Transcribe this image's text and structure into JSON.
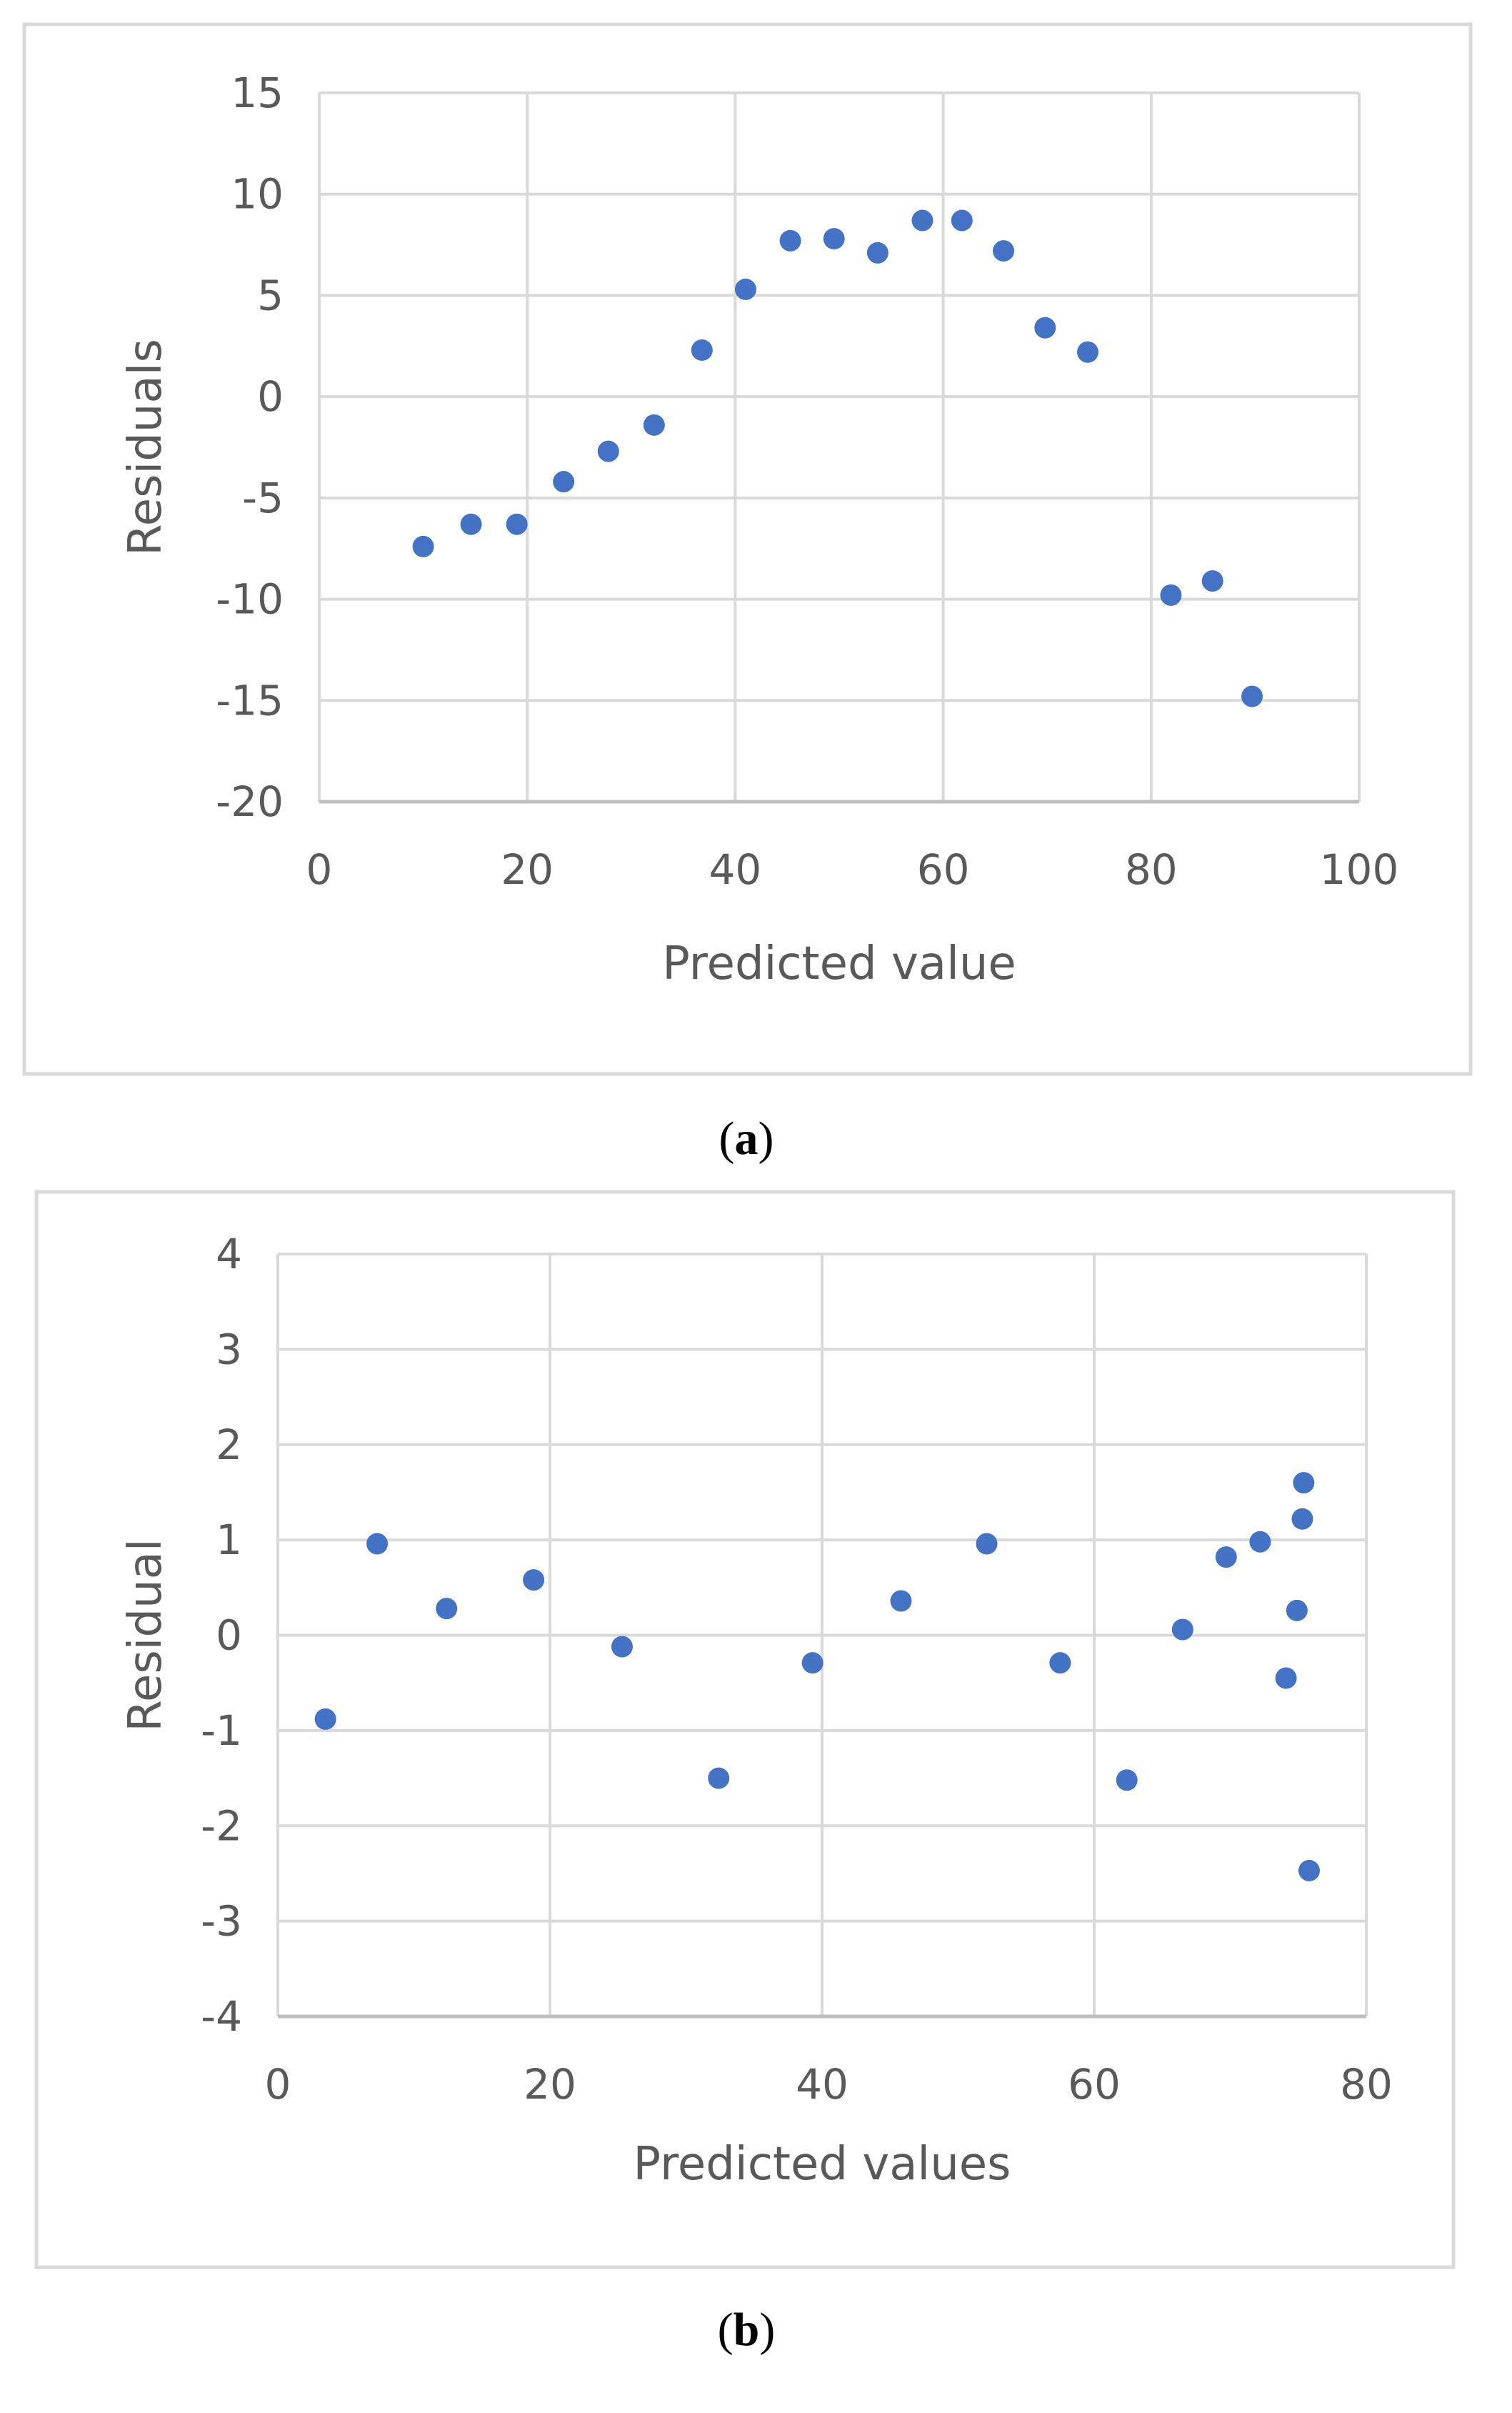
{
  "colors": {
    "marker": "#4472C4",
    "grid": "#D9D9D9",
    "text": "#595959",
    "frame": "#D9D9D9"
  },
  "chart_data": [
    {
      "type": "scatter",
      "caption_letter": "a",
      "xlabel": "Predicted value",
      "ylabel": "Residuals",
      "xlim": [
        0,
        100
      ],
      "ylim": [
        -20,
        15
      ],
      "xticks": [
        0,
        20,
        40,
        60,
        80,
        100
      ],
      "yticks": [
        -20,
        -15,
        -10,
        -5,
        0,
        5,
        10,
        15
      ],
      "grid": true,
      "x": [
        10,
        14.6,
        19,
        23.5,
        27.8,
        32.2,
        36.8,
        41,
        45.3,
        49.5,
        53.7,
        58,
        61.8,
        65.8,
        69.8,
        73.9,
        81.9,
        85.9,
        89.7
      ],
      "y": [
        -7.4,
        -6.3,
        -6.3,
        -4.2,
        -2.7,
        -1.4,
        2.3,
        5.3,
        7.7,
        7.8,
        7.1,
        8.7,
        8.7,
        7.2,
        3.4,
        2.2,
        -9.8,
        -9.1,
        -14.8
      ]
    },
    {
      "type": "scatter",
      "caption_letter": "b",
      "xlabel": "Predicted values",
      "ylabel": "Residual",
      "xlim": [
        0,
        80
      ],
      "ylim": [
        -4,
        4
      ],
      "xticks": [
        0,
        20,
        40,
        60,
        80
      ],
      "yticks": [
        -4,
        -3,
        -2,
        -1,
        0,
        1,
        2,
        3,
        4
      ],
      "grid": true,
      "x": [
        3.5,
        7.3,
        12.4,
        18.8,
        25.3,
        32.4,
        39.3,
        45.8,
        52.1,
        57.5,
        62.4,
        66.5,
        69.7,
        72.2,
        74.1,
        74.9,
        75.3,
        75.4,
        75.8
      ],
      "y": [
        -0.88,
        0.96,
        0.28,
        0.58,
        -0.12,
        -1.5,
        -0.29,
        0.36,
        0.96,
        -0.29,
        -1.52,
        0.06,
        0.82,
        0.98,
        -0.45,
        0.26,
        1.22,
        1.6,
        -2.47
      ]
    }
  ]
}
